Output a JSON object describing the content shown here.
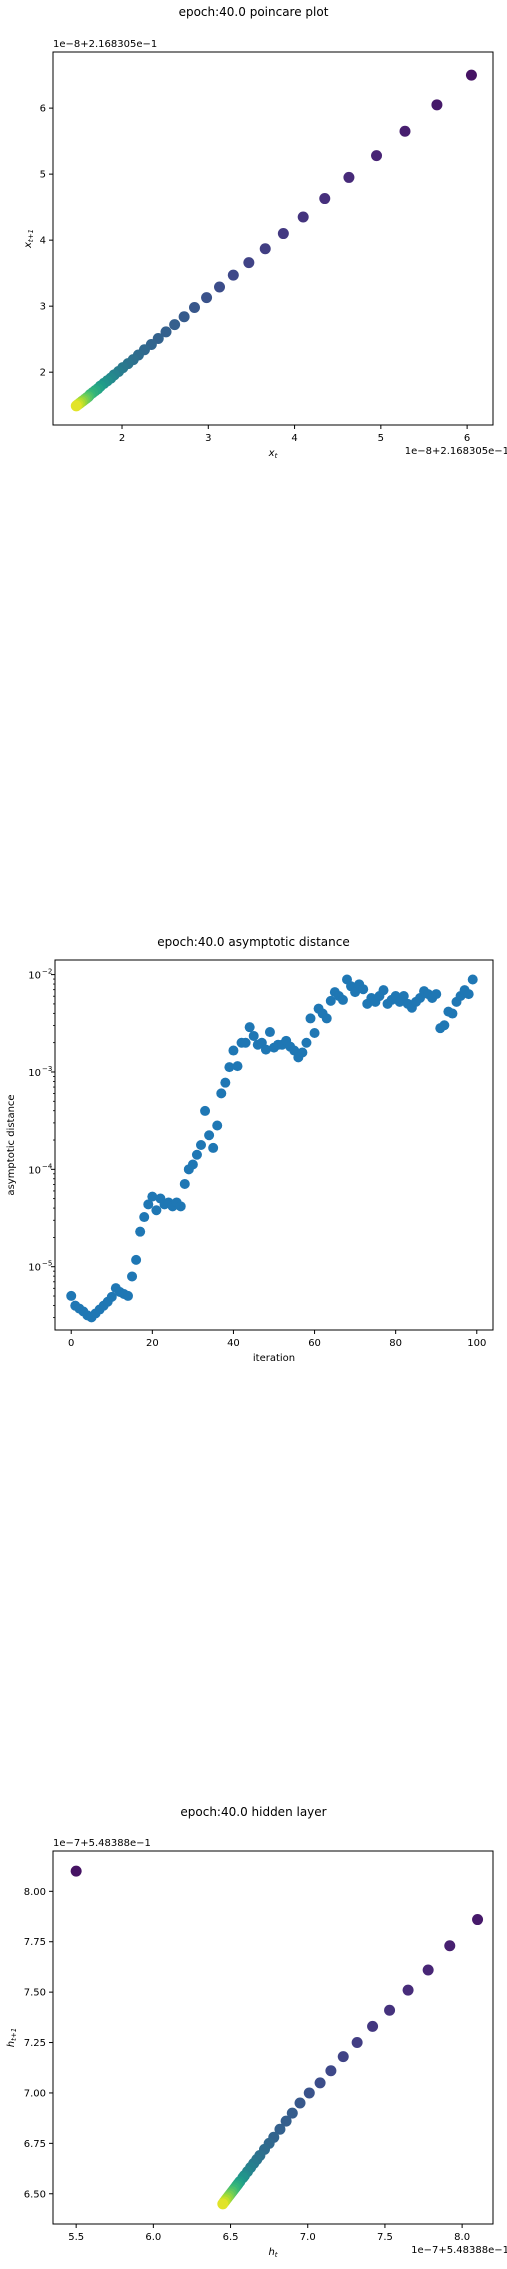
{
  "chart_data": [
    {
      "type": "scatter",
      "title": "epoch:40.0 poincare plot",
      "xlabel": "x_t",
      "ylabel": "x_{t+1}",
      "x_offset_text": "1e−8+2.168305e−1",
      "y_offset_text": "1e−8+2.168305e−1",
      "xlim": [
        1.2,
        6.3
      ],
      "ylim": [
        1.2,
        6.85
      ],
      "xticks": [
        2,
        3,
        4,
        5,
        6
      ],
      "yticks": [
        2,
        3,
        4,
        5,
        6
      ],
      "colormap": "viridis",
      "x": [
        6.05,
        5.65,
        5.28,
        4.95,
        4.63,
        4.35,
        4.1,
        3.87,
        3.66,
        3.47,
        3.29,
        3.13,
        2.98,
        2.84,
        2.72,
        2.61,
        2.51,
        2.42,
        2.34,
        2.26,
        2.19,
        2.13,
        2.07,
        2.01,
        1.96,
        1.91,
        1.87,
        1.83,
        1.79,
        1.75,
        1.72,
        1.69,
        1.66,
        1.63,
        1.61,
        1.59,
        1.57,
        1.55,
        1.53,
        1.51,
        1.49,
        1.47
      ],
      "y": [
        6.5,
        6.05,
        5.65,
        5.28,
        4.95,
        4.63,
        4.35,
        4.1,
        3.87,
        3.66,
        3.47,
        3.29,
        3.13,
        2.98,
        2.84,
        2.72,
        2.61,
        2.51,
        2.42,
        2.34,
        2.26,
        2.19,
        2.13,
        2.07,
        2.01,
        1.96,
        1.91,
        1.87,
        1.83,
        1.79,
        1.75,
        1.72,
        1.69,
        1.66,
        1.63,
        1.61,
        1.59,
        1.57,
        1.55,
        1.53,
        1.51,
        1.49
      ]
    },
    {
      "type": "scatter",
      "title": "epoch:40.0 asymptotic distance",
      "xlabel": "iteration",
      "ylabel": "asymptotic distance",
      "yscale": "log",
      "xlim": [
        -4,
        104
      ],
      "ylim_log10": [
        -5.65,
        -1.85
      ],
      "xticks": [
        0,
        20,
        40,
        60,
        80,
        100
      ],
      "yticks_exp": [
        -5,
        -4,
        -3,
        -2
      ],
      "color": "#1f77b4",
      "log10_y": [
        -5.3,
        -5.4,
        -5.43,
        -5.46,
        -5.5,
        -5.52,
        -5.48,
        -5.44,
        -5.4,
        -5.36,
        -5.31,
        -5.22,
        -5.26,
        -5.28,
        -5.3,
        -5.1,
        -4.93,
        -4.64,
        -4.49,
        -4.36,
        -4.28,
        -4.42,
        -4.3,
        -4.36,
        -4.34,
        -4.38,
        -4.34,
        -4.38,
        -4.15,
        -4.0,
        -3.95,
        -3.85,
        -3.75,
        -3.4,
        -3.65,
        -3.78,
        -3.55,
        -3.22,
        -3.11,
        -2.95,
        -2.78,
        -2.94,
        -2.7,
        -2.7,
        -2.54,
        -2.63,
        -2.72,
        -2.7,
        -2.77,
        -2.59,
        -2.75,
        -2.72,
        -2.72,
        -2.68,
        -2.74,
        -2.78,
        -2.85,
        -2.8,
        -2.7,
        -2.45,
        -2.6,
        -2.35,
        -2.4,
        -2.45,
        -2.27,
        -2.18,
        -2.22,
        -2.26,
        -2.05,
        -2.12,
        -2.18,
        -2.1,
        -2.15,
        -2.3,
        -2.24,
        -2.28,
        -2.22,
        -2.16,
        -2.3,
        -2.26,
        -2.22,
        -2.28,
        -2.22,
        -2.3,
        -2.34,
        -2.28,
        -2.24,
        -2.17,
        -2.2,
        -2.24,
        -2.2,
        -2.55,
        -2.52,
        -2.38,
        -2.4,
        -2.28,
        -2.22,
        -2.16,
        -2.2,
        -2.05
      ]
    },
    {
      "type": "scatter",
      "title": "epoch:40.0 hidden layer",
      "xlabel": "h_t",
      "ylabel": "h_{t+1}",
      "x_offset_text": "1e−7+5.48388e−1",
      "y_offset_text": "1e−7+5.48388e−1",
      "xlim": [
        5.35,
        8.2
      ],
      "ylim": [
        6.35,
        8.2
      ],
      "xticks": [
        5.5,
        6.0,
        6.5,
        7.0,
        7.5,
        8.0
      ],
      "yticks": [
        6.5,
        6.75,
        7.0,
        7.25,
        7.5,
        7.75,
        8.0
      ],
      "yticklabels": [
        "6.50",
        "6.75",
        "7.00",
        "7.25",
        "7.50",
        "7.75",
        "8.00"
      ],
      "colormap": "viridis",
      "x": [
        5.5,
        8.1,
        7.92,
        7.78,
        7.65,
        7.53,
        7.42,
        7.32,
        7.23,
        7.15,
        7.08,
        7.01,
        6.95,
        6.9,
        6.86,
        6.82,
        6.78,
        6.75,
        6.72,
        6.69,
        6.67,
        6.65,
        6.63,
        6.61,
        6.59,
        6.58,
        6.56,
        6.55,
        6.54,
        6.53,
        6.52,
        6.51,
        6.5,
        6.49,
        6.48,
        6.47,
        6.46,
        6.45
      ],
      "y": [
        8.1,
        7.86,
        7.73,
        7.61,
        7.51,
        7.41,
        7.33,
        7.25,
        7.18,
        7.11,
        7.05,
        7.0,
        6.95,
        6.9,
        6.86,
        6.82,
        6.78,
        6.75,
        6.72,
        6.69,
        6.67,
        6.65,
        6.63,
        6.61,
        6.59,
        6.58,
        6.56,
        6.55,
        6.54,
        6.53,
        6.52,
        6.51,
        6.5,
        6.49,
        6.48,
        6.47,
        6.46,
        6.45
      ]
    }
  ]
}
